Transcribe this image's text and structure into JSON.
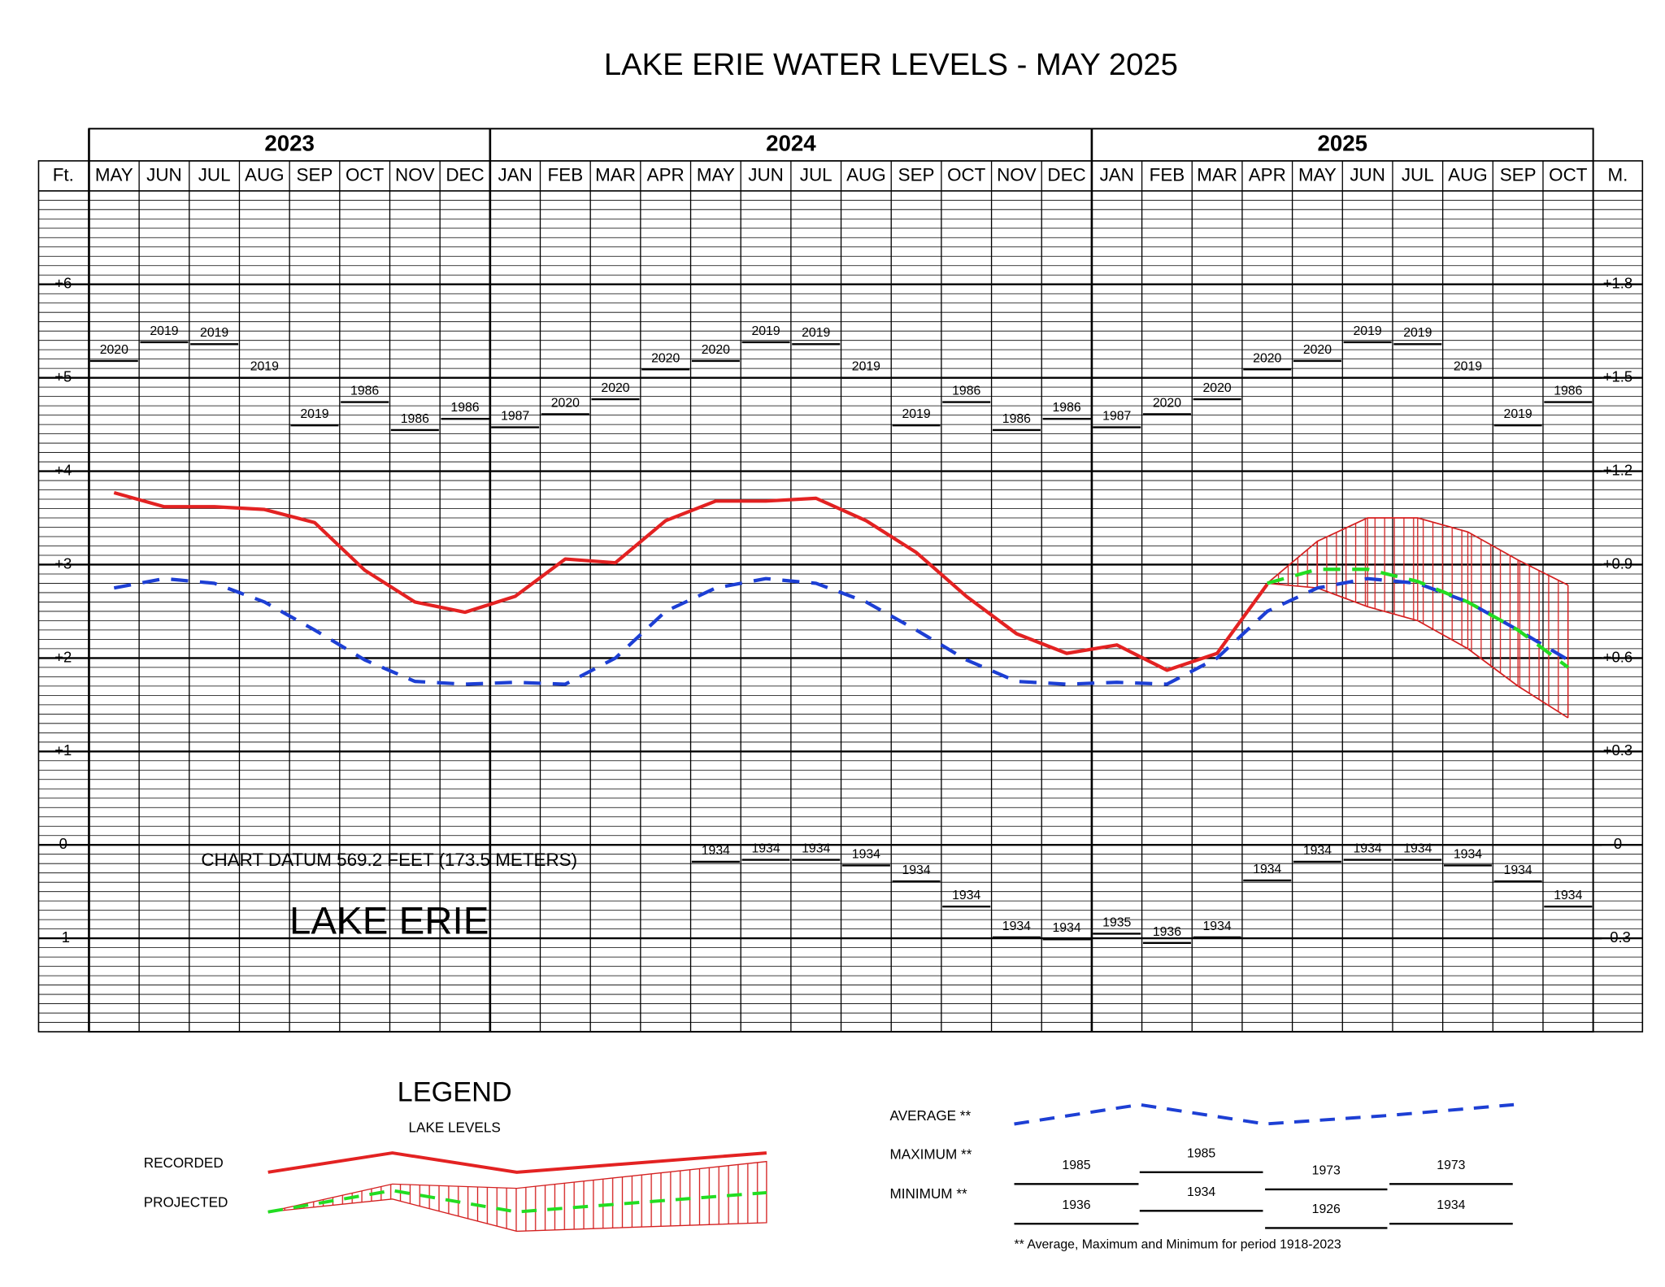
{
  "chart_data": {
    "type": "line",
    "title": "LAKE ERIE WATER LEVELS - MAY 2025",
    "y_axis_label": "Ft.",
    "y2_axis_label": "M.",
    "years": [
      {
        "label": "2023",
        "months": [
          "MAY",
          "JUN",
          "JUL",
          "AUG",
          "SEP",
          "OCT",
          "NOV",
          "DEC"
        ]
      },
      {
        "label": "2024",
        "months": [
          "JAN",
          "FEB",
          "MAR",
          "APR",
          "MAY",
          "JUN",
          "JUL",
          "AUG",
          "SEP",
          "OCT",
          "NOV",
          "DEC"
        ]
      },
      {
        "label": "2025",
        "months": [
          "JAN",
          "FEB",
          "MAR",
          "APR",
          "MAY",
          "JUN",
          "JUL",
          "AUG",
          "SEP",
          "OCT"
        ]
      }
    ],
    "ylim": [
      -2,
      7
    ],
    "yticks": [
      {
        "value": -1,
        "label": "-1"
      },
      0,
      {
        "value": 1,
        "label": "+1"
      },
      {
        "value": 2,
        "label": "+2"
      },
      {
        "value": 3,
        "label": "+3"
      },
      {
        "value": 4,
        "label": "+4"
      },
      {
        "value": 5,
        "label": "+5"
      },
      {
        "value": 6,
        "label": "+6"
      }
    ],
    "y2lim": [
      -0.6,
      2.1
    ],
    "y2ticks": [
      {
        "value": -0.3,
        "label": "-0.3"
      },
      0,
      {
        "value": 0.3,
        "label": "+0.3"
      },
      {
        "value": 0.6,
        "label": "+0.6"
      },
      {
        "value": 0.9,
        "label": "+0.9"
      },
      {
        "value": 1.2,
        "label": "+1.2"
      },
      {
        "value": 1.5,
        "label": "+1.5"
      },
      {
        "value": 1.8,
        "label": "+1.8"
      }
    ],
    "grid": true,
    "series": [
      {
        "name": "RECORDED",
        "color": "#e32222",
        "style": "solid",
        "values": [
          3.77,
          3.62,
          3.62,
          3.59,
          3.45,
          2.94,
          2.6,
          2.49,
          2.66,
          3.06,
          3.02,
          3.47,
          3.68,
          3.68,
          3.71,
          3.47,
          3.13,
          2.66,
          2.26,
          2.05,
          2.14,
          1.87,
          2.05,
          2.79,
          null,
          null,
          null,
          null,
          null,
          null
        ]
      },
      {
        "name": "PROJECTED",
        "color": "#22dd22",
        "style": "dashed",
        "values": [
          null,
          null,
          null,
          null,
          null,
          null,
          null,
          null,
          null,
          null,
          null,
          null,
          null,
          null,
          null,
          null,
          null,
          null,
          null,
          null,
          null,
          null,
          null,
          2.8,
          2.95,
          2.95,
          2.82,
          2.6,
          2.3,
          1.9
        ]
      },
      {
        "name": "AVERAGE **",
        "color": "#1d3fd4",
        "style": "dashed",
        "values": [
          2.75,
          2.85,
          2.8,
          2.6,
          2.3,
          1.98,
          1.75,
          1.72,
          1.74,
          1.72,
          2.0,
          2.5,
          2.75,
          2.85,
          2.8,
          2.6,
          2.3,
          1.98,
          1.75,
          1.72,
          1.74,
          1.72,
          2.0,
          2.5,
          2.75,
          2.85,
          2.8,
          2.6,
          2.3,
          1.98
        ]
      }
    ],
    "projection_range": {
      "color": "#d42020",
      "upper": [
        null,
        null,
        null,
        null,
        null,
        null,
        null,
        null,
        null,
        null,
        null,
        null,
        null,
        null,
        null,
        null,
        null,
        null,
        null,
        null,
        null,
        null,
        null,
        2.8,
        3.25,
        3.5,
        3.5,
        3.35,
        3.05,
        2.78
      ],
      "lower": [
        null,
        null,
        null,
        null,
        null,
        null,
        null,
        null,
        null,
        null,
        null,
        null,
        null,
        null,
        null,
        null,
        null,
        null,
        null,
        null,
        null,
        null,
        null,
        2.8,
        2.75,
        2.55,
        2.4,
        2.1,
        1.7,
        1.36
      ]
    },
    "maximum": {
      "values": [
        5.18,
        5.38,
        5.36,
        5.0,
        4.49,
        4.74,
        4.44,
        4.56,
        4.47,
        4.61,
        4.77,
        5.09,
        5.18,
        5.38,
        5.36,
        5.0,
        4.49,
        4.74,
        4.44,
        4.56,
        4.47,
        4.61,
        4.77,
        5.09,
        5.18,
        5.38,
        5.36,
        5.0,
        4.49,
        4.74
      ],
      "years": [
        "2020",
        "2019",
        "2019",
        "2019",
        "2019",
        "1986",
        "1986",
        "1986",
        "1987",
        "2020",
        "2020",
        "2020",
        "2020",
        "2019",
        "2019",
        "2019",
        "2019",
        "1986",
        "1986",
        "1986",
        "1987",
        "2020",
        "2020",
        "2020",
        "2020",
        "2019",
        "2019",
        "2019",
        "2019",
        "1986"
      ]
    },
    "minimum": {
      "values": [
        null,
        null,
        null,
        null,
        null,
        null,
        null,
        null,
        null,
        null,
        null,
        null,
        -0.18,
        -0.16,
        -0.16,
        -0.22,
        -0.39,
        -0.66,
        -0.99,
        -1.01,
        -0.95,
        -1.05,
        -0.99,
        -0.38,
        -0.18,
        -0.16,
        -0.16,
        -0.22,
        -0.39,
        -0.66
      ],
      "years": [
        null,
        null,
        null,
        null,
        null,
        null,
        null,
        null,
        null,
        null,
        null,
        null,
        "1934",
        "1934",
        "1934",
        "1934",
        "1934",
        "1934",
        "1934",
        "1934",
        "1935",
        "1936",
        "1934",
        "1934",
        "1934",
        "1934",
        "1934",
        "1934",
        "1934",
        "1934"
      ]
    },
    "annotations": [
      "CHART DATUM  569.2 FEET (173.5 METERS)",
      "LAKE ERIE"
    ],
    "legend": {
      "title": "LEGEND",
      "subtitle": "LAKE LEVELS",
      "maximum_label": "MAXIMUM **",
      "minimum_label": "MINIMUM **",
      "maximum_years": [
        "1985",
        "1985",
        "1973",
        "1973"
      ],
      "minimum_years": [
        "1936",
        "1934",
        "1926",
        "1934"
      ],
      "footnote": "** Average, Maximum and Minimum for period 1918-2023"
    }
  }
}
